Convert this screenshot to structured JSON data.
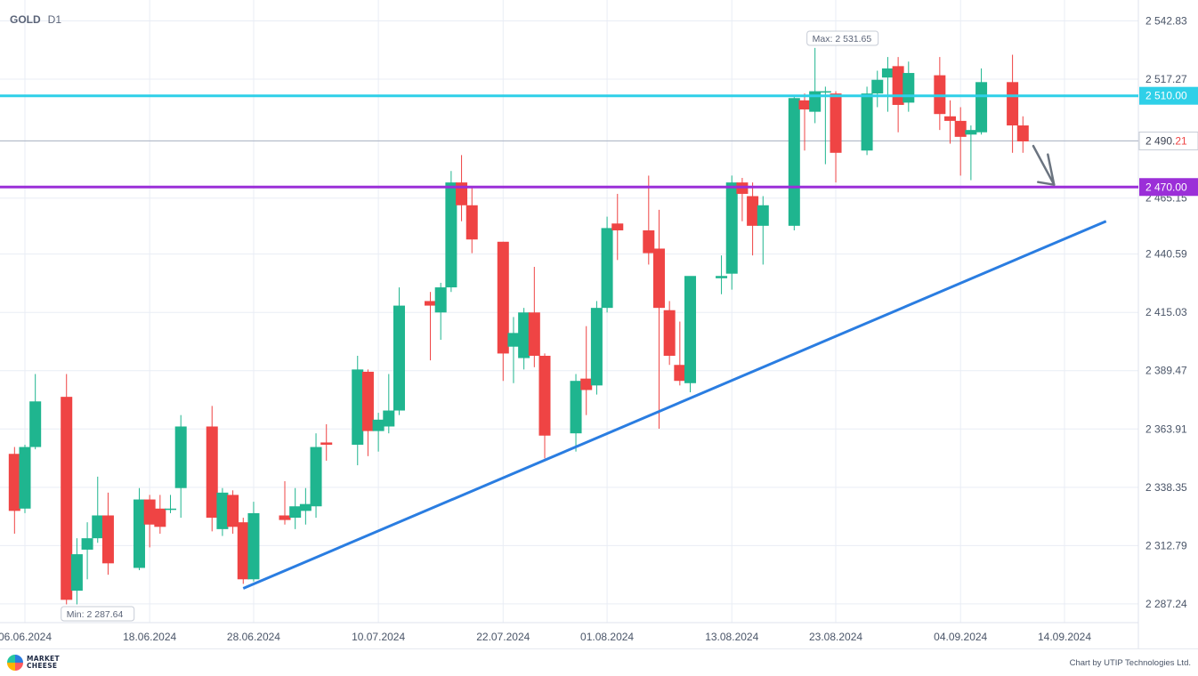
{
  "header": {
    "symbol": "GOLD",
    "timeframe": "D1"
  },
  "footer": {
    "logo_line1": "MARKET",
    "logo_line2": "CHEESE",
    "credit": "Chart by UTIP Technologies Ltd."
  },
  "colors": {
    "up": "#1fb58f",
    "down": "#ef4444",
    "grid": "#e9edf5",
    "support_line": "#2a7de1",
    "resistance_1": "#2fd0e8",
    "resistance_2": "#9b2fd8",
    "price_line": "#aab2c2",
    "arrow": "#6b7480"
  },
  "chart_data": {
    "type": "candlestick",
    "instrument": "GOLD",
    "timeframe": "D1",
    "ylim": [
      2279,
      2552
    ],
    "y_ticks": [
      "2 542.83",
      "2 517.27",
      "2 490.21",
      "2 465.15",
      "2 440.59",
      "2 415.03",
      "2 389.47",
      "2 363.91",
      "2 338.35",
      "2 312.79",
      "2 287.24"
    ],
    "x_ticks": [
      "06.06.2024",
      "18.06.2024",
      "28.06.2024",
      "10.07.2024",
      "22.07.2024",
      "01.08.2024",
      "13.08.2024",
      "23.08.2024",
      "04.09.2024",
      "14.09.2024"
    ],
    "max_label": "Max: 2 531.65",
    "min_label": "Min: 2 287.64",
    "candles": [
      {
        "date": "05.06.2024",
        "o": 2353,
        "h": 2356,
        "l": 2318,
        "c": 2328
      },
      {
        "date": "06.06.2024",
        "o": 2329,
        "h": 2357,
        "l": 2327,
        "c": 2356
      },
      {
        "date": "07.06.2024",
        "o": 2356,
        "h": 2388,
        "l": 2355,
        "c": 2376
      },
      {
        "date": "10.06.2024",
        "o": 2378,
        "h": 2388,
        "l": 2287,
        "c": 2289
      },
      {
        "date": "11.06.2024",
        "o": 2293,
        "h": 2316,
        "l": 2287,
        "c": 2309
      },
      {
        "date": "12.06.2024",
        "o": 2311,
        "h": 2323,
        "l": 2298,
        "c": 2316
      },
      {
        "date": "13.06.2024",
        "o": 2316,
        "h": 2343,
        "l": 2314,
        "c": 2326
      },
      {
        "date": "14.06.2024",
        "o": 2326,
        "h": 2336,
        "l": 2300,
        "c": 2305
      },
      {
        "date": "17.06.2024",
        "o": 2303,
        "h": 2338,
        "l": 2302,
        "c": 2333
      },
      {
        "date": "18.06.2024",
        "o": 2333,
        "h": 2335,
        "l": 2312,
        "c": 2322
      },
      {
        "date": "19.06.2024",
        "o": 2329,
        "h": 2335,
        "l": 2318,
        "c": 2321
      },
      {
        "date": "20.06.2024",
        "o": 2329,
        "h": 2335,
        "l": 2327,
        "c": 2329
      },
      {
        "date": "21.06.2024",
        "o": 2338,
        "h": 2370,
        "l": 2325,
        "c": 2365
      },
      {
        "date": "24.06.2024",
        "o": 2365,
        "h": 2374,
        "l": 2319,
        "c": 2325
      },
      {
        "date": "25.06.2024",
        "o": 2320,
        "h": 2338,
        "l": 2317,
        "c": 2336
      },
      {
        "date": "26.06.2024",
        "o": 2335,
        "h": 2337,
        "l": 2318,
        "c": 2321
      },
      {
        "date": "27.06.2024",
        "o": 2323,
        "h": 2325,
        "l": 2296,
        "c": 2298
      },
      {
        "date": "28.06.2024",
        "o": 2298,
        "h": 2332,
        "l": 2297,
        "c": 2327
      },
      {
        "date": "01.07.2024",
        "o": 2326,
        "h": 2341,
        "l": 2322,
        "c": 2324
      },
      {
        "date": "02.07.2024",
        "o": 2325,
        "h": 2338,
        "l": 2320,
        "c": 2330
      },
      {
        "date": "03.07.2024",
        "o": 2328,
        "h": 2338,
        "l": 2322,
        "c": 2331
      },
      {
        "date": "04.07.2024",
        "o": 2330,
        "h": 2362,
        "l": 2325,
        "c": 2356
      },
      {
        "date": "05.07.2024",
        "o": 2358,
        "h": 2366,
        "l": 2350,
        "c": 2357
      },
      {
        "date": "08.07.2024",
        "o": 2357,
        "h": 2396,
        "l": 2348,
        "c": 2390
      },
      {
        "date": "09.07.2024",
        "o": 2389,
        "h": 2390,
        "l": 2352,
        "c": 2363
      },
      {
        "date": "10.07.2024",
        "o": 2363,
        "h": 2371,
        "l": 2354,
        "c": 2368
      },
      {
        "date": "11.07.2024",
        "o": 2365,
        "h": 2388,
        "l": 2362,
        "c": 2372
      },
      {
        "date": "12.07.2024",
        "o": 2372,
        "h": 2426,
        "l": 2370,
        "c": 2418
      },
      {
        "date": "15.07.2024",
        "o": 2420,
        "h": 2424,
        "l": 2394,
        "c": 2418
      },
      {
        "date": "16.07.2024",
        "o": 2415,
        "h": 2428,
        "l": 2403,
        "c": 2426
      },
      {
        "date": "17.07.2024",
        "o": 2426,
        "h": 2477,
        "l": 2424,
        "c": 2472
      },
      {
        "date": "18.07.2024",
        "o": 2472,
        "h": 2484,
        "l": 2455,
        "c": 2462
      },
      {
        "date": "19.07.2024",
        "o": 2462,
        "h": 2470,
        "l": 2441,
        "c": 2447
      },
      {
        "date": "22.07.2024",
        "o": 2446,
        "h": 2446,
        "l": 2385,
        "c": 2397
      },
      {
        "date": "23.07.2024",
        "o": 2400,
        "h": 2413,
        "l": 2384,
        "c": 2406
      },
      {
        "date": "24.07.2024",
        "o": 2395,
        "h": 2417,
        "l": 2390,
        "c": 2415
      },
      {
        "date": "25.07.2024",
        "o": 2415,
        "h": 2435,
        "l": 2391,
        "c": 2396
      },
      {
        "date": "26.07.2024",
        "o": 2396,
        "h": 2397,
        "l": 2351,
        "c": 2361
      },
      {
        "date": "29.07.2024",
        "o": 2362,
        "h": 2388,
        "l": 2354,
        "c": 2385
      },
      {
        "date": "30.07.2024",
        "o": 2386,
        "h": 2409,
        "l": 2370,
        "c": 2381
      },
      {
        "date": "31.07.2024",
        "o": 2383,
        "h": 2420,
        "l": 2379,
        "c": 2417
      },
      {
        "date": "01.08.2024",
        "o": 2417,
        "h": 2457,
        "l": 2415,
        "c": 2452
      },
      {
        "date": "02.08.2024",
        "o": 2454,
        "h": 2467,
        "l": 2438,
        "c": 2451
      },
      {
        "date": "05.08.2024",
        "o": 2451,
        "h": 2475,
        "l": 2436,
        "c": 2441
      },
      {
        "date": "06.08.2024",
        "o": 2443,
        "h": 2460,
        "l": 2364,
        "c": 2417
      },
      {
        "date": "07.08.2024",
        "o": 2416,
        "h": 2420,
        "l": 2392,
        "c": 2396
      },
      {
        "date": "08.08.2024",
        "o": 2392,
        "h": 2411,
        "l": 2383,
        "c": 2385
      },
      {
        "date": "09.08.2024",
        "o": 2384,
        "h": 2429,
        "l": 2380,
        "c": 2431
      },
      {
        "date": "12.08.2024",
        "o": 2430,
        "h": 2440,
        "l": 2423,
        "c": 2431
      },
      {
        "date": "13.08.2024",
        "o": 2432,
        "h": 2475,
        "l": 2425,
        "c": 2472
      },
      {
        "date": "14.08.2024",
        "o": 2472,
        "h": 2474,
        "l": 2455,
        "c": 2467
      },
      {
        "date": "15.08.2024",
        "o": 2466,
        "h": 2472,
        "l": 2440,
        "c": 2453
      },
      {
        "date": "16.08.2024",
        "o": 2453,
        "h": 2466,
        "l": 2436,
        "c": 2462
      },
      {
        "date": "19.08.2024",
        "o": 2453,
        "h": 2510,
        "l": 2451,
        "c": 2509
      },
      {
        "date": "20.08.2024",
        "o": 2508,
        "h": 2511,
        "l": 2486,
        "c": 2504
      },
      {
        "date": "21.08.2024",
        "o": 2503,
        "h": 2531,
        "l": 2498,
        "c": 2512
      },
      {
        "date": "22.08.2024",
        "o": 2512,
        "h": 2514,
        "l": 2480,
        "c": 2512
      },
      {
        "date": "23.08.2024",
        "o": 2511,
        "h": 2512,
        "l": 2472,
        "c": 2485
      },
      {
        "date": "26.08.2024",
        "o": 2486,
        "h": 2514,
        "l": 2484,
        "c": 2511
      },
      {
        "date": "27.08.2024",
        "o": 2511,
        "h": 2521,
        "l": 2505,
        "c": 2517
      },
      {
        "date": "28.08.2024",
        "o": 2518,
        "h": 2527,
        "l": 2503,
        "c": 2522
      },
      {
        "date": "29.08.2024",
        "o": 2523,
        "h": 2527,
        "l": 2494,
        "c": 2506
      },
      {
        "date": "30.08.2024",
        "o": 2507,
        "h": 2525,
        "l": 2503,
        "c": 2520
      },
      {
        "date": "02.09.2024",
        "o": 2519,
        "h": 2527,
        "l": 2495,
        "c": 2502
      },
      {
        "date": "03.09.2024",
        "o": 2501,
        "h": 2508,
        "l": 2489,
        "c": 2499
      },
      {
        "date": "04.09.2024",
        "o": 2499,
        "h": 2505,
        "l": 2475,
        "c": 2492
      },
      {
        "date": "05.09.2024",
        "o": 2493,
        "h": 2497,
        "l": 2473,
        "c": 2495
      },
      {
        "date": "06.09.2024",
        "o": 2494,
        "h": 2522,
        "l": 2493,
        "c": 2516
      },
      {
        "date": "09.09.2024",
        "o": 2516,
        "h": 2528,
        "l": 2485,
        "c": 2497
      },
      {
        "date": "10.09.2024",
        "o": 2497,
        "h": 2501,
        "l": 2485,
        "c": 2490
      }
    ],
    "horizontal_levels": [
      {
        "label": "2 510.00",
        "value": 2510.0,
        "color": "#2fd0e8"
      },
      {
        "label": "2 470.00",
        "value": 2470.0,
        "color": "#9b2fd8"
      }
    ],
    "current_price": {
      "label_main": "2 490.",
      "label_tail": "21",
      "value": 2490.21
    },
    "trendline": {
      "from": {
        "date": "27.06.2024",
        "value": 2294
      },
      "to": {
        "date": "18.09.2024",
        "value": 2455
      }
    },
    "forecast_arrow": {
      "from": {
        "date": "11.09.2024",
        "value": 2488
      },
      "to": {
        "date": "13.09.2024",
        "value": 2471
      },
      "direction": "down"
    }
  }
}
